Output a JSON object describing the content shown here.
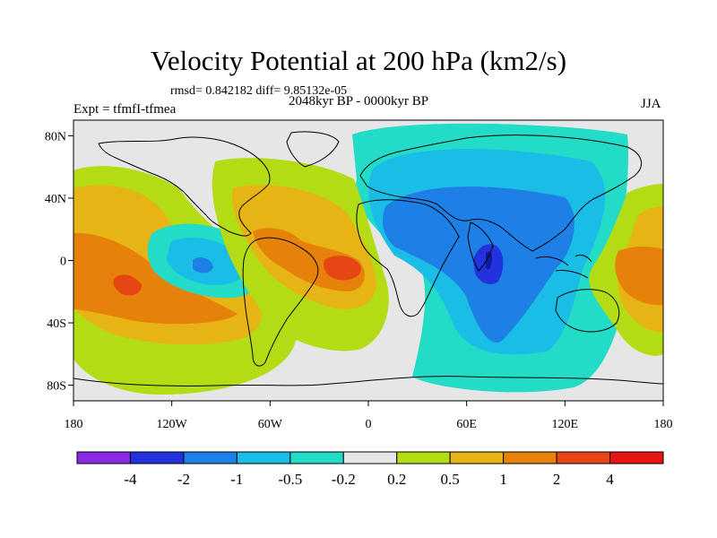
{
  "title": "Velocity Potential at 200 hPa (km2/s)",
  "rmsd_text": "rmsd= 0.842182 diff= 9.85132e-05",
  "period_text": "2048kyr BP - 0000kyr BP",
  "experiment_text": "Expt = tfmfI-tfmea",
  "season_text": "JJA",
  "chart_data": {
    "type": "contour-map",
    "variable": "200 hPa velocity potential difference",
    "units": "km2/s",
    "xlim": [
      -180,
      180
    ],
    "ylim": [
      -90,
      90
    ],
    "x_ticks": [
      {
        "value": -180,
        "label": "180"
      },
      {
        "value": -120,
        "label": "120W"
      },
      {
        "value": -60,
        "label": "60W"
      },
      {
        "value": 0,
        "label": "0"
      },
      {
        "value": 60,
        "label": "60E"
      },
      {
        "value": 120,
        "label": "120E"
      },
      {
        "value": 180,
        "label": "180"
      }
    ],
    "y_ticks": [
      {
        "value": 80,
        "label": "80N"
      },
      {
        "value": 40,
        "label": "40N"
      },
      {
        "value": 0,
        "label": "0"
      },
      {
        "value": -40,
        "label": "40S"
      },
      {
        "value": -80,
        "label": "80S"
      }
    ],
    "colorbar": {
      "labels": [
        "-4",
        "-2",
        "-1",
        "-0.5",
        "-0.2",
        "0.2",
        "0.5",
        "1",
        "2",
        "4"
      ],
      "colors": [
        "#8a2be2",
        "#2233dd",
        "#1e7fe6",
        "#19bde6",
        "#22dcc8",
        "#e6e6e6",
        "#b4dc14",
        "#e6b414",
        "#e6820a",
        "#e64614",
        "#e61414"
      ]
    },
    "features": [
      {
        "name": "eastern hemisphere negative center",
        "lon": 75,
        "lat": 0,
        "value": -2.5
      },
      {
        "name": "indian ocean minimum",
        "lon": 75,
        "lat": -5,
        "value": -4
      },
      {
        "name": "tropical atlantic positive center",
        "lon": -15,
        "lat": 0,
        "value": 3
      },
      {
        "name": "eastern pacific positive center",
        "lon": -150,
        "lat": -15,
        "value": 2.5
      },
      {
        "name": "east pacific negative center",
        "lon": -100,
        "lat": -3,
        "value": -1.5
      },
      {
        "name": "western pacific positive center",
        "lon": 160,
        "lat": -5,
        "value": 1.5
      }
    ]
  }
}
